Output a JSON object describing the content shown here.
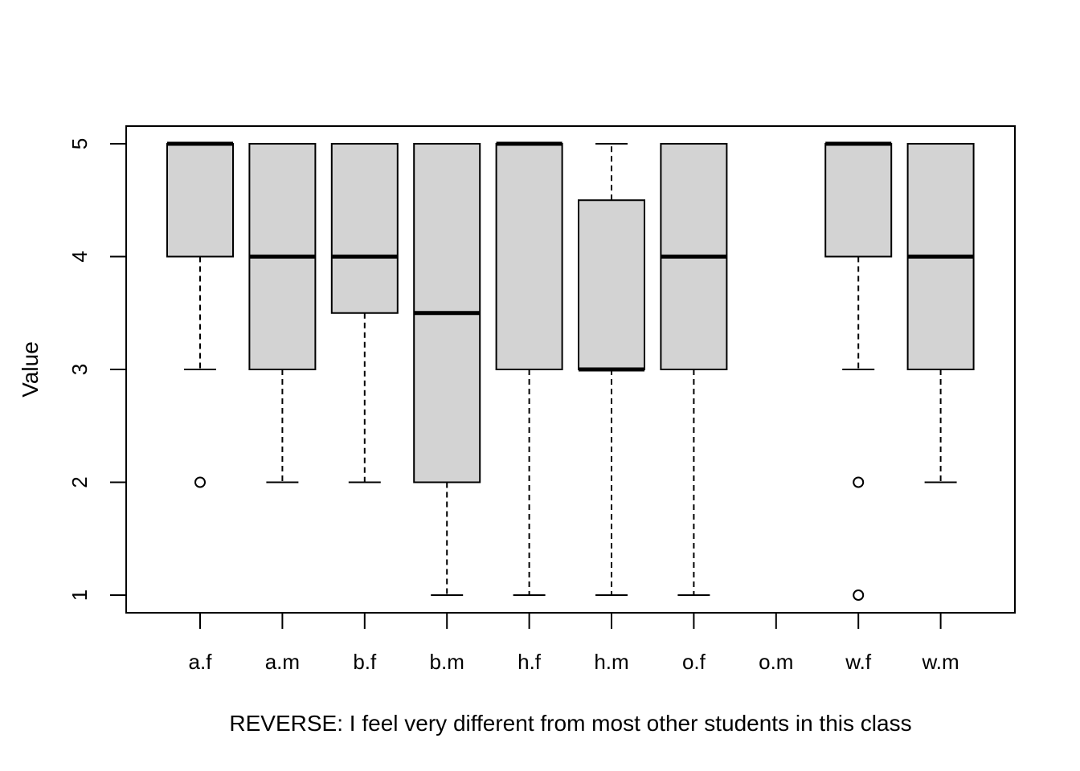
{
  "chart_data": {
    "type": "boxplot",
    "xlabel": "REVERSE: I feel very different from most other students in this class",
    "ylabel": "Value",
    "ylim": [
      1,
      5
    ],
    "yticks": [
      1,
      2,
      3,
      4,
      5
    ],
    "grid": false,
    "colors": {
      "box_fill": "#d3d3d3",
      "line": "#000000"
    },
    "categories": [
      "a.f",
      "a.m",
      "b.f",
      "b.m",
      "h.f",
      "h.m",
      "o.f",
      "o.m",
      "w.f",
      "w.m"
    ],
    "boxes": [
      {
        "category": "a.f",
        "whisker_low": 3,
        "q1": 4,
        "median": 5,
        "q3": 5,
        "whisker_high": 5,
        "outliers": [
          2
        ]
      },
      {
        "category": "a.m",
        "whisker_low": 2,
        "q1": 3,
        "median": 4,
        "q3": 5,
        "whisker_high": 5,
        "outliers": []
      },
      {
        "category": "b.f",
        "whisker_low": 2,
        "q1": 3.5,
        "median": 4,
        "q3": 5,
        "whisker_high": 5,
        "outliers": []
      },
      {
        "category": "b.m",
        "whisker_low": 1,
        "q1": 2,
        "median": 3.5,
        "q3": 5,
        "whisker_high": 5,
        "outliers": []
      },
      {
        "category": "h.f",
        "whisker_low": 1,
        "q1": 3,
        "median": 5,
        "q3": 5,
        "whisker_high": 5,
        "outliers": []
      },
      {
        "category": "h.m",
        "whisker_low": 1,
        "q1": 3,
        "median": 3,
        "q3": 4.5,
        "whisker_high": 5,
        "outliers": []
      },
      {
        "category": "o.f",
        "whisker_low": 1,
        "q1": 3,
        "median": 4,
        "q3": 5,
        "whisker_high": 5,
        "outliers": []
      },
      {
        "category": "o.m",
        "empty": true
      },
      {
        "category": "w.f",
        "whisker_low": 3,
        "q1": 4,
        "median": 5,
        "q3": 5,
        "whisker_high": 5,
        "outliers": [
          2,
          1
        ]
      },
      {
        "category": "w.m",
        "whisker_low": 2,
        "q1": 3,
        "median": 4,
        "q3": 5,
        "whisker_high": 5,
        "outliers": []
      }
    ]
  }
}
